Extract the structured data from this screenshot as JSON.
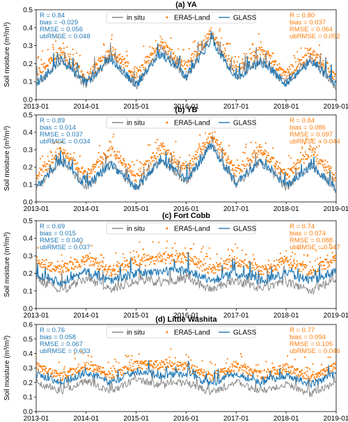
{
  "figure": {
    "colors": {
      "in_situ": "#7f7f7f",
      "era5": "#ff7f0e",
      "glass": "#1f77b4"
    },
    "legend": [
      "in situ",
      "ERA5-Land",
      "GLASS"
    ]
  },
  "chart_data": [
    {
      "type": "line",
      "title": "(a) YA",
      "ylabel": "Soil moisture (m³/m³)",
      "xlim": [
        "2013-01",
        "2019-01"
      ],
      "xticks": [
        "2013-01",
        "2014-01",
        "2015-01",
        "2016-01",
        "2017-01",
        "2018-01",
        "2019-01"
      ],
      "ylim": [
        0.0,
        0.5
      ],
      "yticks": [
        "0.0",
        "0.1",
        "0.2",
        "0.3",
        "0.4",
        "0.5"
      ],
      "legend_position": "top-center",
      "series": [
        {
          "name": "in situ",
          "style": "line",
          "x": [
            "2013-01",
            "2013-07",
            "2014-01",
            "2014-07",
            "2015-01",
            "2015-07",
            "2016-01",
            "2016-07",
            "2017-01",
            "2017-07",
            "2018-01",
            "2018-07",
            "2019-01"
          ],
          "values": [
            0.08,
            0.22,
            0.08,
            0.24,
            0.07,
            0.28,
            0.12,
            0.36,
            0.12,
            0.22,
            0.09,
            0.23,
            0.07
          ]
        },
        {
          "name": "ERA5-Land",
          "style": "points",
          "x": [
            "2013-01",
            "2013-07",
            "2014-01",
            "2014-07",
            "2015-01",
            "2015-07",
            "2016-01",
            "2016-07",
            "2017-01",
            "2017-07",
            "2018-01",
            "2018-07",
            "2019-01"
          ],
          "values": [
            0.13,
            0.27,
            0.12,
            0.28,
            0.13,
            0.31,
            0.18,
            0.37,
            0.17,
            0.27,
            0.14,
            0.26,
            0.13
          ]
        },
        {
          "name": "GLASS",
          "style": "line",
          "x": [
            "2013-01",
            "2013-07",
            "2014-01",
            "2014-07",
            "2015-01",
            "2015-07",
            "2016-01",
            "2016-07",
            "2017-01",
            "2017-07",
            "2018-01",
            "2018-07",
            "2019-01"
          ],
          "values": [
            0.09,
            0.22,
            0.09,
            0.23,
            0.08,
            0.26,
            0.13,
            0.33,
            0.12,
            0.21,
            0.09,
            0.22,
            0.08
          ]
        }
      ],
      "stats_left": [
        "R = 0.84",
        "bias = -0.029",
        "RMSE = 0.056",
        "ubRMSE = 0.048"
      ],
      "stats_right": [
        "R = 0.80",
        "bias = 0.037",
        "RMSE = 0.064",
        "ubRMSE = 0.052"
      ]
    },
    {
      "type": "line",
      "title": "(b) YB",
      "ylabel": "Soil moisture (m³/m³)",
      "xlim": [
        "2013-01",
        "2019-01"
      ],
      "xticks": [
        "2013-01",
        "2014-01",
        "2015-01",
        "2016-01",
        "2017-01",
        "2018-01",
        "2019-01"
      ],
      "ylim": [
        0.0,
        0.5
      ],
      "yticks": [
        "0.0",
        "0.1",
        "0.2",
        "0.3",
        "0.4",
        "0.5"
      ],
      "legend_position": "top-center",
      "series": [
        {
          "name": "in situ",
          "style": "line",
          "x": [
            "2013-01",
            "2013-07",
            "2014-01",
            "2014-07",
            "2015-01",
            "2015-07",
            "2016-01",
            "2016-07",
            "2017-01",
            "2017-07",
            "2018-01",
            "2018-07",
            "2019-01"
          ],
          "values": [
            0.07,
            0.24,
            0.08,
            0.22,
            0.07,
            0.25,
            0.11,
            0.34,
            0.1,
            0.24,
            0.08,
            0.22,
            0.07
          ]
        },
        {
          "name": "ERA5-Land",
          "style": "points",
          "x": [
            "2013-01",
            "2013-07",
            "2014-01",
            "2014-07",
            "2015-01",
            "2015-07",
            "2016-01",
            "2016-07",
            "2017-01",
            "2017-07",
            "2018-01",
            "2018-07",
            "2019-01"
          ],
          "values": [
            0.14,
            0.3,
            0.15,
            0.3,
            0.14,
            0.31,
            0.18,
            0.38,
            0.17,
            0.3,
            0.15,
            0.29,
            0.14
          ]
        },
        {
          "name": "GLASS",
          "style": "line",
          "x": [
            "2013-01",
            "2013-07",
            "2014-01",
            "2014-07",
            "2015-01",
            "2015-07",
            "2016-01",
            "2016-07",
            "2017-01",
            "2017-07",
            "2018-01",
            "2018-07",
            "2019-01"
          ],
          "values": [
            0.08,
            0.24,
            0.09,
            0.22,
            0.08,
            0.24,
            0.12,
            0.32,
            0.11,
            0.23,
            0.09,
            0.21,
            0.08
          ]
        }
      ],
      "stats_left": [
        "R = 0.89",
        "bias = 0.014",
        "RMSE = 0.037",
        "ubRMSE = 0.034"
      ],
      "stats_right": [
        "R = 0.84",
        "bias = 0.086",
        "RMSE = 0.097",
        "ubRMSE = 0.044"
      ]
    },
    {
      "type": "line",
      "title": "(c) Fort Cobb",
      "ylabel": "Soil moisture (m³/m³)",
      "xlim": [
        "2013-01",
        "2019-01"
      ],
      "xticks": [
        "2013-01",
        "2014-01",
        "2015-01",
        "2016-01",
        "2017-01",
        "2018-01",
        "2019-01"
      ],
      "ylim": [
        0.0,
        0.5
      ],
      "yticks": [
        "0.0",
        "0.1",
        "0.2",
        "0.3",
        "0.4",
        "0.5"
      ],
      "legend_position": "top-center",
      "series": [
        {
          "name": "in situ",
          "style": "line",
          "x": [
            "2013-01",
            "2013-07",
            "2014-01",
            "2014-07",
            "2015-01",
            "2015-07",
            "2016-01",
            "2016-07",
            "2017-01",
            "2017-07",
            "2018-01",
            "2018-07",
            "2019-01"
          ],
          "values": [
            0.17,
            0.1,
            0.17,
            0.11,
            0.16,
            0.15,
            0.17,
            0.11,
            0.16,
            0.11,
            0.15,
            0.1,
            0.16
          ]
        },
        {
          "name": "ERA5-Land",
          "style": "points",
          "x": [
            "2013-01",
            "2013-07",
            "2014-01",
            "2014-07",
            "2015-01",
            "2015-07",
            "2016-01",
            "2016-07",
            "2017-01",
            "2017-07",
            "2018-01",
            "2018-07",
            "2019-01"
          ],
          "values": [
            0.27,
            0.22,
            0.28,
            0.21,
            0.27,
            0.28,
            0.29,
            0.22,
            0.27,
            0.21,
            0.27,
            0.21,
            0.28
          ]
        },
        {
          "name": "GLASS",
          "style": "line",
          "x": [
            "2013-01",
            "2013-07",
            "2014-01",
            "2014-07",
            "2015-01",
            "2015-07",
            "2016-01",
            "2016-07",
            "2017-01",
            "2017-07",
            "2018-01",
            "2018-07",
            "2019-01"
          ],
          "values": [
            0.2,
            0.15,
            0.21,
            0.16,
            0.2,
            0.21,
            0.22,
            0.16,
            0.2,
            0.16,
            0.2,
            0.16,
            0.21
          ]
        }
      ],
      "stats_left": [
        "R = 0.69",
        "bias = 0.015",
        "RMSE = 0.040",
        "ubRMSE = 0.037"
      ],
      "stats_right": [
        "R = 0.74",
        "bias = 0.074",
        "RMSE = 0.088",
        "ubRMSE = 0.047"
      ]
    },
    {
      "type": "line",
      "title": "(d) Little Washita",
      "ylabel": "Soil moisture (m³/m³)",
      "xlim": [
        "2013-01",
        "2019-01"
      ],
      "xticks": [
        "2013-01",
        "2014-01",
        "2015-01",
        "2016-01",
        "2017-01",
        "2018-01",
        "2019-01"
      ],
      "ylim": [
        0.0,
        0.6
      ],
      "yticks": [
        "0.0",
        "0.1",
        "0.2",
        "0.3",
        "0.4",
        "0.5",
        "0.6"
      ],
      "legend_position": "top-center",
      "series": [
        {
          "name": "in situ",
          "style": "line",
          "x": [
            "2013-01",
            "2013-07",
            "2014-01",
            "2014-07",
            "2015-01",
            "2015-07",
            "2016-01",
            "2016-07",
            "2017-01",
            "2017-07",
            "2018-01",
            "2018-07",
            "2019-01"
          ],
          "values": [
            0.2,
            0.14,
            0.21,
            0.14,
            0.22,
            0.18,
            0.2,
            0.13,
            0.2,
            0.14,
            0.19,
            0.12,
            0.2
          ]
        },
        {
          "name": "ERA5-Land",
          "style": "points",
          "x": [
            "2013-01",
            "2013-07",
            "2014-01",
            "2014-07",
            "2015-01",
            "2015-07",
            "2016-01",
            "2016-07",
            "2017-01",
            "2017-07",
            "2018-01",
            "2018-07",
            "2019-01"
          ],
          "values": [
            0.31,
            0.24,
            0.32,
            0.25,
            0.32,
            0.32,
            0.31,
            0.24,
            0.31,
            0.25,
            0.3,
            0.24,
            0.31
          ]
        },
        {
          "name": "GLASS",
          "style": "line",
          "x": [
            "2013-01",
            "2013-07",
            "2014-01",
            "2014-07",
            "2015-01",
            "2015-07",
            "2016-01",
            "2016-07",
            "2017-01",
            "2017-07",
            "2018-01",
            "2018-07",
            "2019-01"
          ],
          "values": [
            0.26,
            0.2,
            0.27,
            0.2,
            0.28,
            0.25,
            0.26,
            0.19,
            0.26,
            0.2,
            0.25,
            0.19,
            0.26
          ]
        }
      ],
      "stats_left": [
        "R = 0.76",
        "bias = 0.058",
        "RMSE = 0.067",
        "ubRMSE = 0.033"
      ],
      "stats_right": [
        "R = 0.77",
        "bias = 0.094",
        "RMSE = 0.105",
        "ubRMSE = 0.046"
      ]
    }
  ]
}
